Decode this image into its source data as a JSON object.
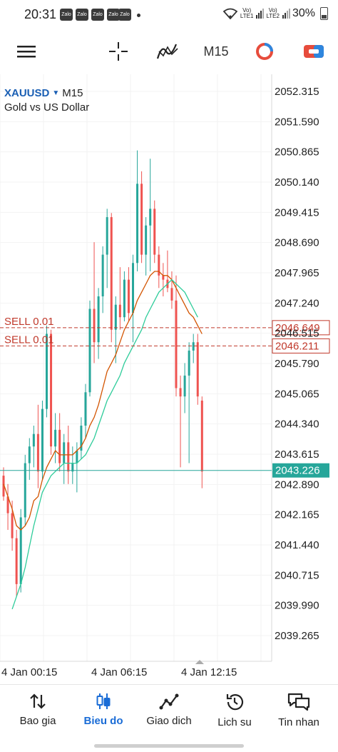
{
  "status_bar": {
    "time": "20:31",
    "notif_label": "Zalo",
    "sim1": "Vo)\nLTE1",
    "sim2": "Vo)\nLTE2",
    "battery": "30%"
  },
  "toolbar": {
    "timeframe": "M15"
  },
  "chart": {
    "symbol": "XAUUSD",
    "timeframe": "M15",
    "description": "Gold vs US Dollar",
    "price_axis": [
      "2052.315",
      "2051.590",
      "2050.865",
      "2050.140",
      "2049.415",
      "2048.690",
      "2047.965",
      "2047.240",
      "2046.515",
      "2045.790",
      "2045.065",
      "2044.340",
      "2043.615",
      "2042.890",
      "2042.165",
      "2041.440",
      "2040.715",
      "2039.990",
      "2039.265"
    ],
    "time_axis": [
      "4 Jan 00:15",
      "4 Jan 06:15",
      "4 Jan 12:15"
    ],
    "orders": [
      {
        "label": "SELL 0.01",
        "price": 2046.649,
        "price_text": "2046.649"
      },
      {
        "label": "SELL 0.01",
        "price": 2046.211,
        "price_text": "2046.211"
      }
    ],
    "current_price": 2043.226,
    "current_price_text": "2043.226",
    "colors": {
      "bull": "#26a69a",
      "bear": "#ef5350",
      "order": "#c0392b",
      "ma_fast": "#d35400",
      "ma_slow": "#2ecc9a"
    }
  },
  "chart_data": {
    "type": "candlestick",
    "title": "XAUUSD M15",
    "subtitle": "Gold vs US Dollar",
    "ylim": [
      2039.0,
      2052.6
    ],
    "candles": [
      {
        "o": 2043.1,
        "h": 2043.3,
        "l": 2042.5,
        "c": 2042.6
      },
      {
        "o": 2042.6,
        "h": 2042.9,
        "l": 2041.8,
        "c": 2042.2
      },
      {
        "o": 2042.2,
        "h": 2042.5,
        "l": 2041.3,
        "c": 2041.6
      },
      {
        "o": 2041.6,
        "h": 2041.8,
        "l": 2040.2,
        "c": 2040.5
      },
      {
        "o": 2040.5,
        "h": 2042.3,
        "l": 2040.3,
        "c": 2042.1
      },
      {
        "o": 2042.1,
        "h": 2043.6,
        "l": 2041.9,
        "c": 2043.4
      },
      {
        "o": 2043.4,
        "h": 2044.0,
        "l": 2043.0,
        "c": 2043.8
      },
      {
        "o": 2043.8,
        "h": 2044.3,
        "l": 2043.3,
        "c": 2044.1
      },
      {
        "o": 2044.1,
        "h": 2044.8,
        "l": 2042.8,
        "c": 2043.2
      },
      {
        "o": 2043.2,
        "h": 2044.9,
        "l": 2043.0,
        "c": 2044.7
      },
      {
        "o": 2044.7,
        "h": 2046.7,
        "l": 2044.5,
        "c": 2046.5
      },
      {
        "o": 2046.5,
        "h": 2046.6,
        "l": 2043.6,
        "c": 2043.8
      },
      {
        "o": 2043.8,
        "h": 2044.6,
        "l": 2043.4,
        "c": 2044.2
      },
      {
        "o": 2044.2,
        "h": 2044.6,
        "l": 2043.2,
        "c": 2043.4
      },
      {
        "o": 2043.4,
        "h": 2044.1,
        "l": 2042.9,
        "c": 2043.9
      },
      {
        "o": 2043.9,
        "h": 2044.3,
        "l": 2042.9,
        "c": 2043.2
      },
      {
        "o": 2043.2,
        "h": 2043.8,
        "l": 2042.9,
        "c": 2043.4
      },
      {
        "o": 2043.4,
        "h": 2043.9,
        "l": 2042.7,
        "c": 2043.7
      },
      {
        "o": 2043.7,
        "h": 2044.5,
        "l": 2043.5,
        "c": 2044.3
      },
      {
        "o": 2044.3,
        "h": 2045.3,
        "l": 2044.0,
        "c": 2045.1
      },
      {
        "o": 2045.1,
        "h": 2047.3,
        "l": 2045.0,
        "c": 2047.1
      },
      {
        "o": 2047.1,
        "h": 2048.7,
        "l": 2045.8,
        "c": 2046.3
      },
      {
        "o": 2046.3,
        "h": 2047.6,
        "l": 2045.9,
        "c": 2047.4
      },
      {
        "o": 2047.4,
        "h": 2048.6,
        "l": 2047.0,
        "c": 2048.4
      },
      {
        "o": 2048.4,
        "h": 2049.5,
        "l": 2047.6,
        "c": 2049.3
      },
      {
        "o": 2049.3,
        "h": 2049.4,
        "l": 2046.3,
        "c": 2046.6
      },
      {
        "o": 2046.6,
        "h": 2047.4,
        "l": 2045.8,
        "c": 2047.2
      },
      {
        "o": 2047.2,
        "h": 2048.1,
        "l": 2046.6,
        "c": 2046.9
      },
      {
        "o": 2046.9,
        "h": 2048.0,
        "l": 2046.8,
        "c": 2047.8
      },
      {
        "o": 2047.8,
        "h": 2048.1,
        "l": 2046.8,
        "c": 2047.0
      },
      {
        "o": 2047.0,
        "h": 2048.4,
        "l": 2046.3,
        "c": 2048.2
      },
      {
        "o": 2048.2,
        "h": 2050.9,
        "l": 2048.0,
        "c": 2050.1
      },
      {
        "o": 2050.1,
        "h": 2050.4,
        "l": 2048.2,
        "c": 2048.4
      },
      {
        "o": 2048.4,
        "h": 2049.3,
        "l": 2047.9,
        "c": 2049.1
      },
      {
        "o": 2049.1,
        "h": 2050.7,
        "l": 2048.0,
        "c": 2049.5
      },
      {
        "o": 2049.5,
        "h": 2049.7,
        "l": 2048.2,
        "c": 2048.4
      },
      {
        "o": 2048.4,
        "h": 2048.6,
        "l": 2047.6,
        "c": 2047.9
      },
      {
        "o": 2047.9,
        "h": 2048.2,
        "l": 2047.4,
        "c": 2047.8
      },
      {
        "o": 2047.8,
        "h": 2048.5,
        "l": 2047.5,
        "c": 2047.6
      },
      {
        "o": 2047.6,
        "h": 2048.0,
        "l": 2047.1,
        "c": 2047.3
      },
      {
        "o": 2047.3,
        "h": 2047.9,
        "l": 2045.0,
        "c": 2045.2
      },
      {
        "o": 2045.2,
        "h": 2045.5,
        "l": 2043.3,
        "c": 2045.0
      },
      {
        "o": 2045.0,
        "h": 2045.8,
        "l": 2044.6,
        "c": 2045.5
      },
      {
        "o": 2045.5,
        "h": 2046.3,
        "l": 2043.4,
        "c": 2046.1
      },
      {
        "o": 2046.1,
        "h": 2046.5,
        "l": 2045.8,
        "c": 2046.3
      },
      {
        "o": 2046.3,
        "h": 2046.5,
        "l": 2044.8,
        "c": 2045.0
      },
      {
        "o": 2044.9,
        "h": 2045.0,
        "l": 2042.8,
        "c": 2043.2
      }
    ],
    "ma_fast": [
      2042.9,
      2042.6,
      2042.3,
      2041.9,
      2041.8,
      2041.9,
      2042.1,
      2042.5,
      2042.6,
      2043.0,
      2043.3,
      2043.5,
      2043.7,
      2043.6,
      2043.6,
      2043.6,
      2043.6,
      2043.7,
      2043.8,
      2044.0,
      2044.3,
      2044.5,
      2044.8,
      2045.2,
      2045.6,
      2045.8,
      2046.0,
      2046.3,
      2046.6,
      2046.8,
      2047.0,
      2047.3,
      2047.5,
      2047.7,
      2047.9,
      2048.0,
      2048.0,
      2047.9,
      2047.9,
      2047.8,
      2047.6,
      2047.4,
      2047.2,
      2047.0,
      2046.9,
      2046.7,
      2046.5
    ],
    "ma_slow": [
      null,
      null,
      2039.9,
      2040.2,
      2040.5,
      2040.9,
      2041.4,
      2041.9,
      2042.3,
      2042.7,
      2042.9,
      2043.1,
      2043.2,
      2043.3,
      2043.4,
      2043.4,
      2043.4,
      2043.4,
      2043.5,
      2043.6,
      2043.8,
      2044.0,
      2044.3,
      2044.6,
      2044.9,
      2045.1,
      2045.3,
      2045.5,
      2045.8,
      2046.0,
      2046.2,
      2046.4,
      2046.6,
      2046.9,
      2047.1,
      2047.3,
      2047.5,
      2047.6,
      2047.7,
      2047.8,
      2047.7,
      2047.6,
      2047.5,
      2047.3,
      2047.1,
      2046.9,
      null
    ],
    "time_labels": [
      "4 Jan 00:15",
      "4 Jan 06:15",
      "4 Jan 12:15"
    ]
  },
  "nav": {
    "items": [
      {
        "label": "Bao gia"
      },
      {
        "label": "Bieu do"
      },
      {
        "label": "Giao dich"
      },
      {
        "label": "Lich su"
      },
      {
        "label": "Tin nhan"
      }
    ]
  }
}
